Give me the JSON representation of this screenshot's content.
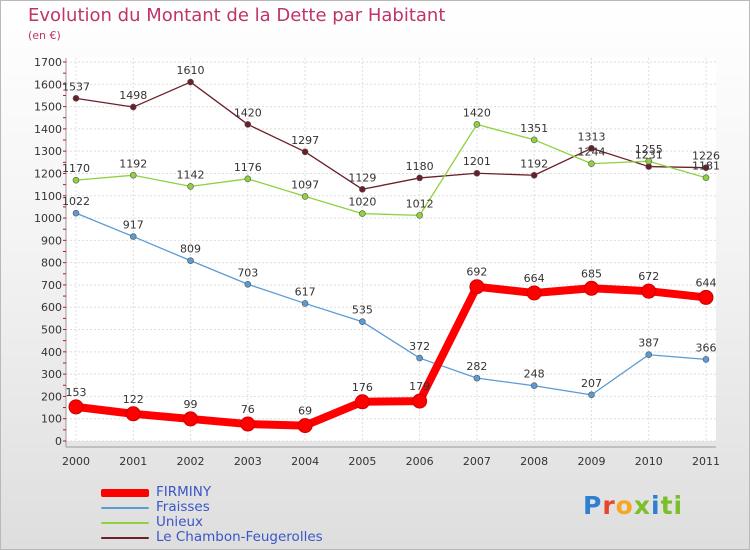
{
  "title": "Evolution du Montant de la Dette par Habitant",
  "subtitle": "(en €)",
  "logo": [
    "P",
    "r",
    "o",
    "x",
    "i",
    "ti"
  ],
  "chart_data": {
    "type": "line",
    "x": [
      "2000",
      "2001",
      "2002",
      "2003",
      "2004",
      "2005",
      "2006",
      "2007",
      "2008",
      "2009",
      "2010",
      "2011"
    ],
    "ylim": [
      0,
      1700
    ],
    "yticks": [
      0,
      100,
      200,
      300,
      400,
      500,
      600,
      700,
      800,
      900,
      1000,
      1100,
      1200,
      1300,
      1400,
      1500,
      1600,
      1700
    ],
    "grid": true,
    "legend_position": "bottom-left",
    "series": [
      {
        "name": "Le Chambon-Feugerolles",
        "color": "#6b1f2a",
        "values": [
          1537,
          1498,
          1610,
          1420,
          1297,
          1129,
          1180,
          1201,
          1192,
          1313,
          1231,
          1226
        ]
      },
      {
        "name": "Unieux",
        "color": "#8fd13f",
        "values": [
          1170,
          1192,
          1142,
          1176,
          1097,
          1020,
          1012,
          1420,
          1351,
          1244,
          1255,
          1181
        ]
      },
      {
        "name": "Fraisses",
        "color": "#5b9bd5",
        "values": [
          1022,
          917,
          809,
          703,
          617,
          535,
          372,
          282,
          248,
          207,
          387,
          366
        ]
      },
      {
        "name": "FIRMINY",
        "color": "#ff0000",
        "values": [
          153,
          122,
          99,
          76,
          69,
          176,
          179,
          692,
          664,
          685,
          672,
          644
        ]
      }
    ]
  }
}
